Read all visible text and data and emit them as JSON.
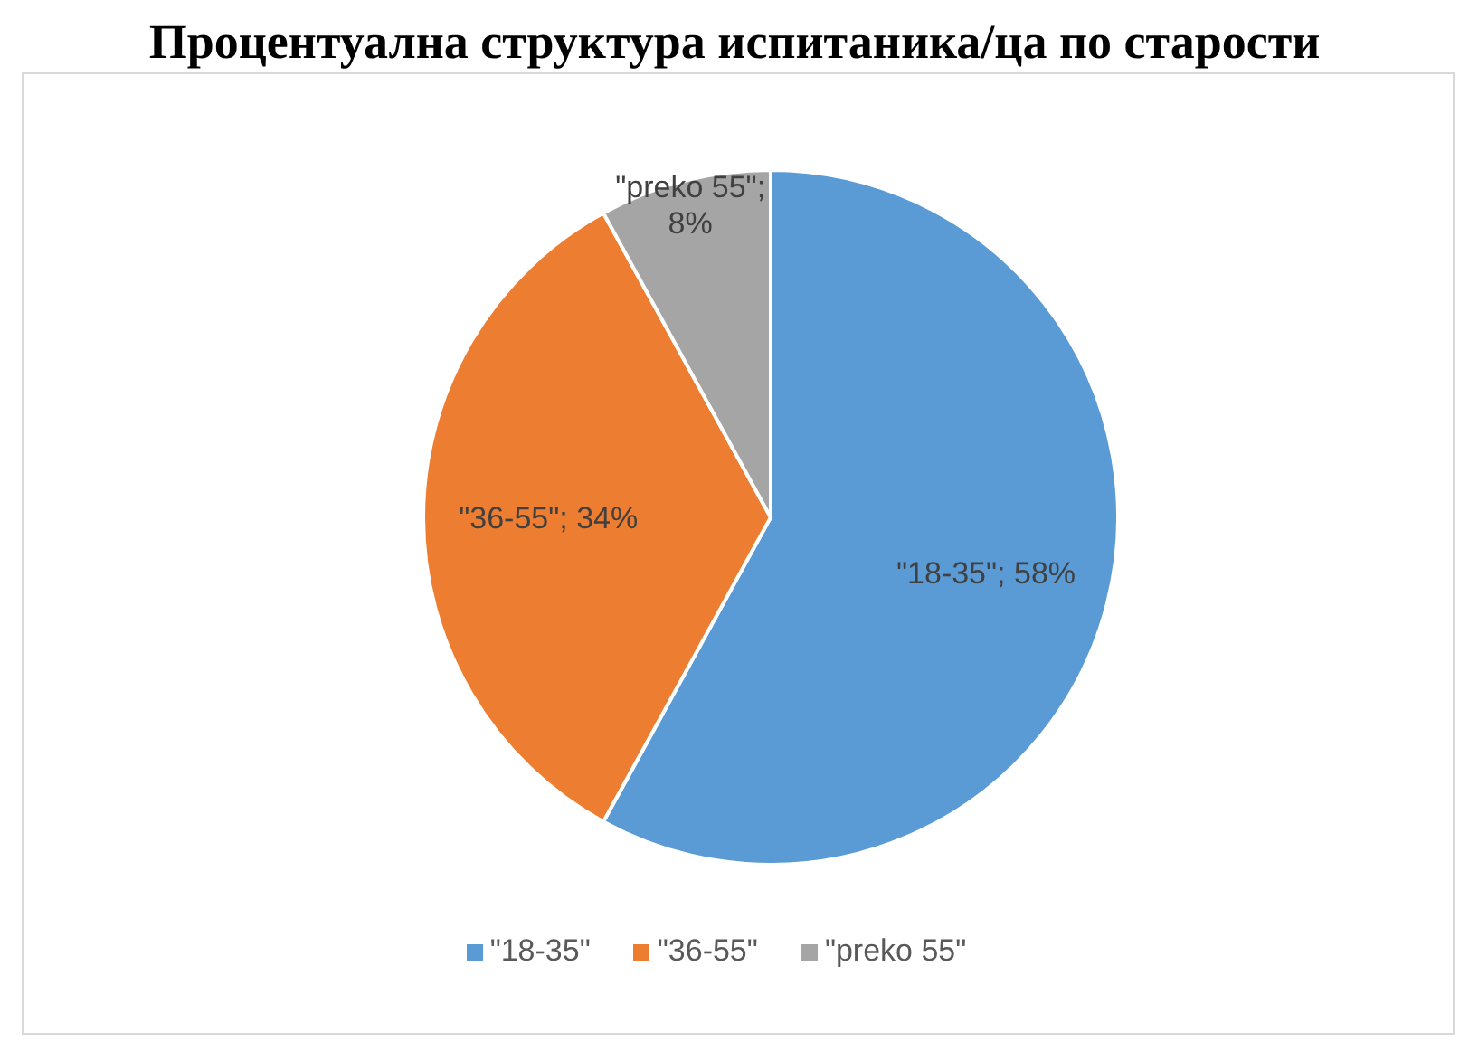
{
  "chart_data": {
    "type": "pie",
    "title": "Процентуална структура испитаника/ца по старости",
    "categories": [
      "\"18-35\"",
      "\"36-55\"",
      "\"preko 55\""
    ],
    "values": [
      58,
      34,
      8
    ],
    "colors": [
      "#5b9bd5",
      "#ed7d31",
      "#a5a5a5"
    ],
    "value_labels": [
      "\"18-35\"; 58%",
      "\"36-55\"; 34%",
      "\"preko 55\"; 8%"
    ],
    "legend": "bottom"
  }
}
